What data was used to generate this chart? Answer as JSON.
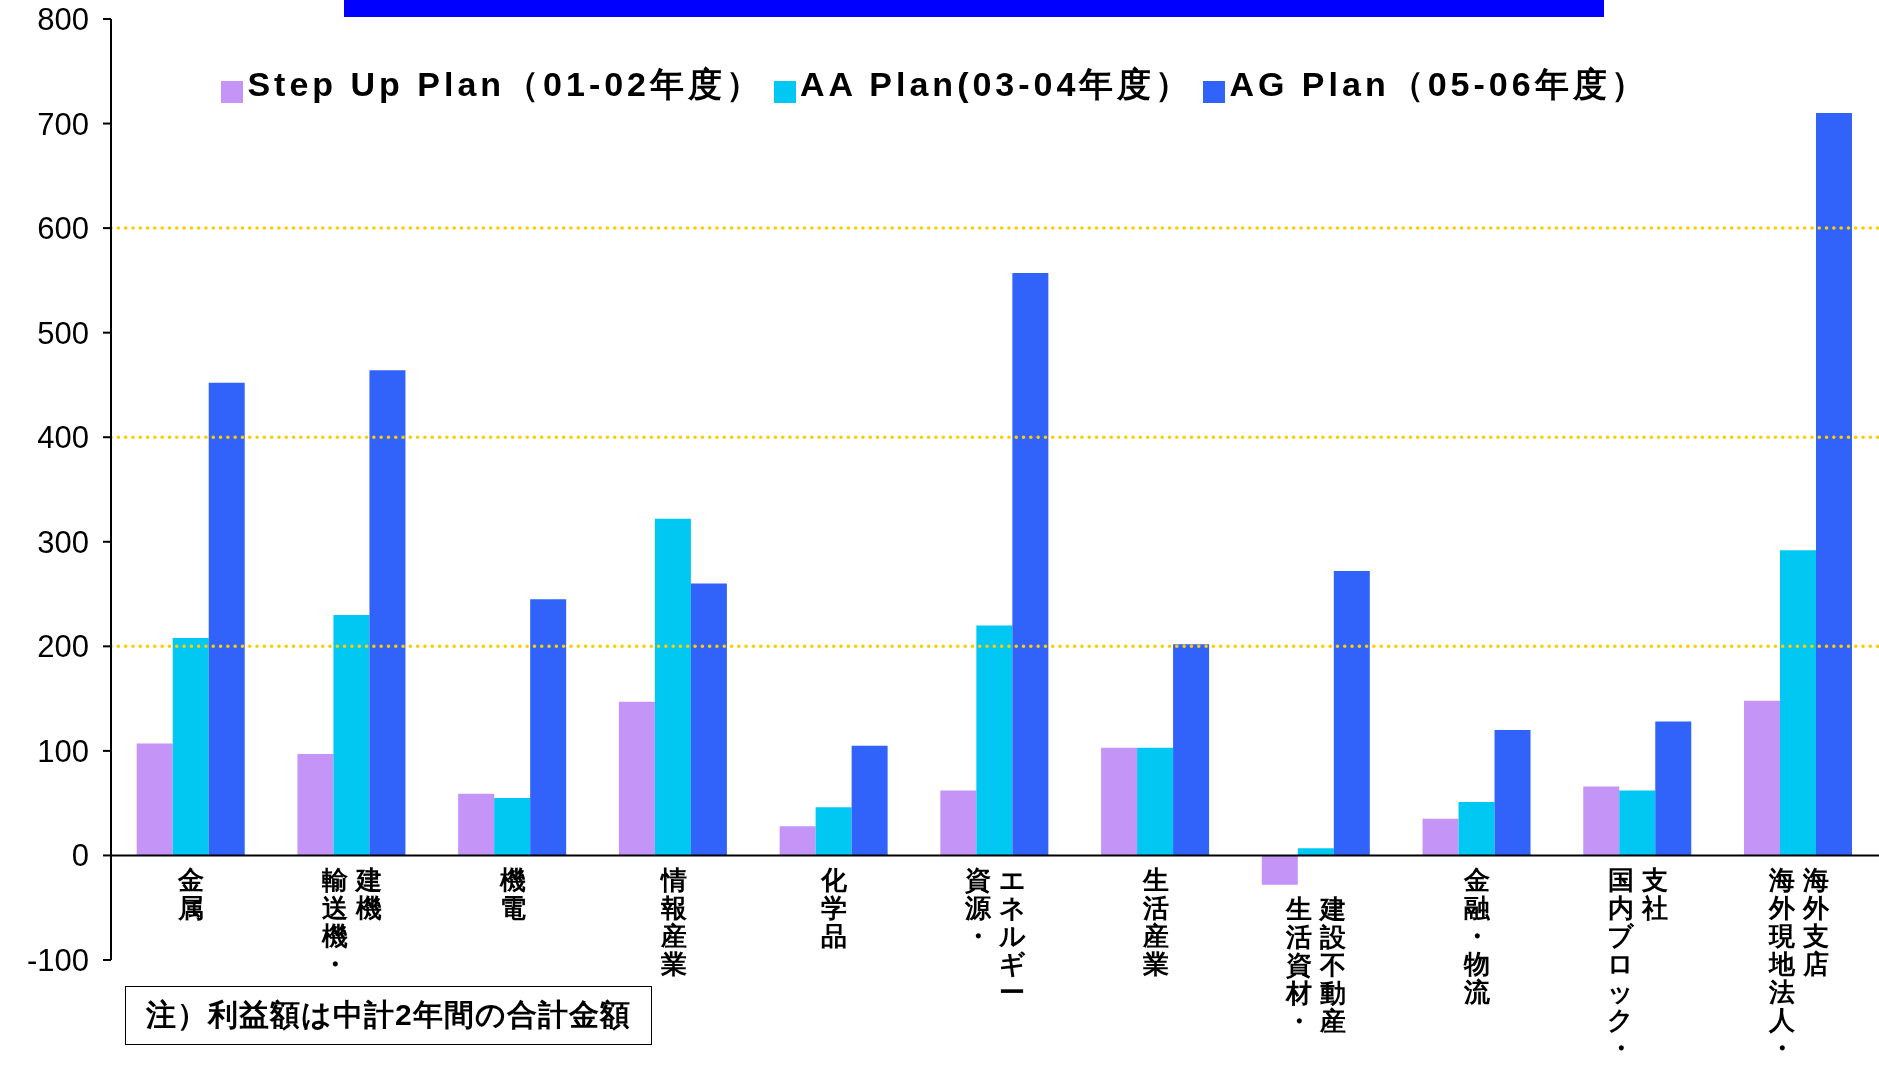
{
  "chart_data": {
    "type": "bar",
    "categories": [
      "金属",
      "輸送機・建機",
      "機電",
      "情報産業",
      "化学品",
      "資源・エネルギー",
      "生活産業",
      "生活資材・建設不動産",
      "金融・物流",
      "国内ブロック・支社",
      "海外現地法人・海外支店"
    ],
    "series": [
      {
        "name": "Step Up Plan（01-02年度）",
        "color": "#c594f7",
        "values": [
          107,
          97,
          59,
          147,
          28,
          62,
          103,
          -28,
          35,
          66,
          148
        ]
      },
      {
        "name": "AA Plan(03-04年度）",
        "color": "#00c8f2",
        "values": [
          208,
          230,
          55,
          322,
          46,
          220,
          103,
          7,
          51,
          62,
          292
        ]
      },
      {
        "name": "AG Plan（05-06年度）",
        "color": "#3162fa",
        "values": [
          452,
          464,
          245,
          260,
          105,
          557,
          202,
          272,
          120,
          128,
          710
        ]
      }
    ],
    "ylim": [
      -100,
      800
    ],
    "yticks": [
      -100,
      0,
      100,
      200,
      300,
      400,
      500,
      600,
      700,
      800
    ],
    "legend": "top",
    "ref_lines": [
      {
        "axis": "y",
        "value": 200,
        "color": "#ffcc00",
        "line_style": "dotted"
      },
      {
        "axis": "y",
        "value": 400,
        "color": "#ffcc00",
        "line_style": "dotted"
      },
      {
        "axis": "y",
        "value": 600,
        "color": "#ffcc00",
        "line_style": "dotted"
      }
    ],
    "annotations": [
      "注）利益額は中計2年間の合計金額"
    ]
  }
}
